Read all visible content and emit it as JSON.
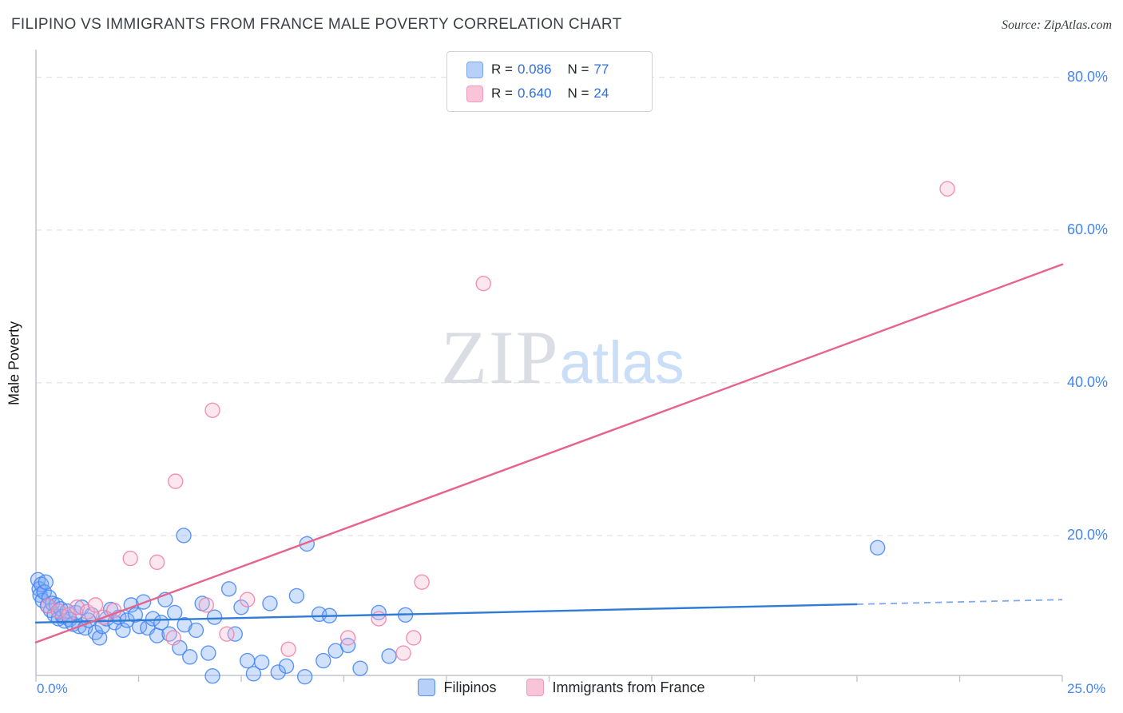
{
  "header": {
    "title": "FILIPINO VS IMMIGRANTS FROM FRANCE MALE POVERTY CORRELATION CHART",
    "source": "Source: ZipAtlas.com"
  },
  "axes": {
    "y_title": "Male Poverty",
    "x_min_label": "0.0%",
    "x_max_label": "25.0%"
  },
  "watermark": {
    "part1": "ZIP",
    "part2": "atlas"
  },
  "legend_box": {
    "rows": [
      {
        "series": "Filipinos",
        "r_label": "R =",
        "r_value": "0.086",
        "n_label": "N =",
        "n_value": "77"
      },
      {
        "series": "Immigrants from France",
        "r_label": "R =",
        "r_value": "0.640",
        "n_label": "N =",
        "n_value": "24"
      }
    ]
  },
  "bottom_legend": {
    "items": [
      {
        "label": "Filipinos"
      },
      {
        "label": "Immigrants from France"
      }
    ]
  },
  "chart_data": {
    "type": "scatter",
    "title": "FILIPINO VS IMMIGRANTS FROM FRANCE MALE POVERTY CORRELATION CHART",
    "xlabel": "",
    "ylabel": "Male Poverty",
    "xlim": [
      0,
      25
    ],
    "ylim": [
      0,
      83.5
    ],
    "x_tick_step": 2.5,
    "grid": "dashed-horizontal",
    "legend_position": "bottom-center",
    "yticks": [
      {
        "value": 20,
        "label": "20.0%"
      },
      {
        "value": 40,
        "label": "40.0%"
      },
      {
        "value": 60,
        "label": "60.0%"
      },
      {
        "value": 80,
        "label": "80.0%"
      }
    ],
    "series": [
      {
        "name": "Filipinos",
        "R": 0.086,
        "N": 77,
        "point_fill": "#7BAAF7",
        "point_stroke": "#4285F4",
        "points": [
          [
            0.05,
            14.2
          ],
          [
            0.08,
            13.0
          ],
          [
            0.1,
            12.2
          ],
          [
            0.13,
            13.6
          ],
          [
            0.16,
            11.5
          ],
          [
            0.2,
            12.6
          ],
          [
            0.24,
            13.9
          ],
          [
            0.28,
            10.8
          ],
          [
            0.32,
            11.9
          ],
          [
            0.36,
            10.2
          ],
          [
            0.4,
            11.1
          ],
          [
            0.45,
            9.6
          ],
          [
            0.5,
            10.9
          ],
          [
            0.55,
            9.1
          ],
          [
            0.6,
            10.4
          ],
          [
            0.65,
            9.4
          ],
          [
            0.7,
            8.8
          ],
          [
            0.76,
            10.1
          ],
          [
            0.82,
            9.0
          ],
          [
            0.9,
            8.4
          ],
          [
            0.97,
            9.9
          ],
          [
            1.05,
            8.1
          ],
          [
            1.12,
            10.6
          ],
          [
            1.2,
            7.9
          ],
          [
            1.28,
            8.9
          ],
          [
            1.36,
            9.6
          ],
          [
            1.45,
            7.3
          ],
          [
            1.55,
            6.6
          ],
          [
            1.62,
            8.1
          ],
          [
            1.72,
            9.1
          ],
          [
            1.82,
            10.3
          ],
          [
            1.92,
            8.6
          ],
          [
            2.02,
            9.3
          ],
          [
            2.12,
            7.6
          ],
          [
            2.22,
            8.9
          ],
          [
            2.32,
            10.9
          ],
          [
            2.42,
            9.6
          ],
          [
            2.52,
            8.1
          ],
          [
            2.62,
            11.3
          ],
          [
            2.72,
            7.9
          ],
          [
            2.85,
            9.1
          ],
          [
            2.95,
            6.9
          ],
          [
            3.05,
            8.6
          ],
          [
            3.15,
            11.6
          ],
          [
            3.25,
            7.1
          ],
          [
            3.38,
            9.9
          ],
          [
            3.5,
            5.3
          ],
          [
            3.6,
            20.0
          ],
          [
            3.62,
            8.3
          ],
          [
            3.75,
            4.1
          ],
          [
            3.9,
            7.6
          ],
          [
            4.05,
            11.1
          ],
          [
            4.2,
            4.6
          ],
          [
            4.3,
            1.6
          ],
          [
            4.35,
            9.3
          ],
          [
            4.7,
            13.0
          ],
          [
            4.85,
            7.1
          ],
          [
            5.0,
            10.6
          ],
          [
            5.15,
            3.6
          ],
          [
            5.3,
            1.9
          ],
          [
            5.5,
            3.4
          ],
          [
            5.7,
            11.1
          ],
          [
            5.9,
            2.1
          ],
          [
            6.1,
            2.9
          ],
          [
            6.35,
            12.1
          ],
          [
            6.55,
            1.5
          ],
          [
            6.6,
            18.9
          ],
          [
            6.9,
            9.7
          ],
          [
            7.15,
            9.5
          ],
          [
            7.0,
            3.6
          ],
          [
            7.3,
            4.9
          ],
          [
            7.6,
            5.6
          ],
          [
            7.9,
            2.6
          ],
          [
            8.35,
            9.9
          ],
          [
            8.6,
            4.2
          ],
          [
            9.0,
            9.6
          ],
          [
            20.5,
            18.4
          ]
        ]
      },
      {
        "name": "Immigrants from France",
        "R": 0.64,
        "N": 24,
        "point_fill": "#F8BBD0",
        "point_stroke": "#EE7FA8",
        "points": [
          [
            0.3,
            10.8
          ],
          [
            0.55,
            10.1
          ],
          [
            0.8,
            9.6
          ],
          [
            1.0,
            10.6
          ],
          [
            1.25,
            10.0
          ],
          [
            1.45,
            10.9
          ],
          [
            1.65,
            9.3
          ],
          [
            1.9,
            10.2
          ],
          [
            2.3,
            17.0
          ],
          [
            2.95,
            16.5
          ],
          [
            3.35,
            6.6
          ],
          [
            3.4,
            27.1
          ],
          [
            4.15,
            10.9
          ],
          [
            4.3,
            36.4
          ],
          [
            4.65,
            7.1
          ],
          [
            5.15,
            11.6
          ],
          [
            6.15,
            5.1
          ],
          [
            7.6,
            6.6
          ],
          [
            8.35,
            9.1
          ],
          [
            8.95,
            4.6
          ],
          [
            9.2,
            6.6
          ],
          [
            9.4,
            13.9
          ],
          [
            10.9,
            53.0
          ],
          [
            22.2,
            65.4
          ]
        ]
      }
    ],
    "trendlines": [
      {
        "series": "Filipinos",
        "color": "#2E7CD6",
        "x1": 0,
        "y1": 8.6,
        "x2": 20.0,
        "y2": 11.0,
        "dashed_to": {
          "x": 25,
          "y": 11.6
        },
        "dash_color": "#7FA9EC"
      },
      {
        "series": "Immigrants from France",
        "color": "#E8638C",
        "x1": 0,
        "y1": 6.0,
        "x2": 25,
        "y2": 55.5
      }
    ]
  }
}
